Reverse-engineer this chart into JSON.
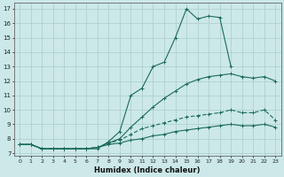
{
  "xlabel": "Humidex (Indice chaleur)",
  "bg_color": "#cce8e8",
  "grid_color": "#aacccc",
  "line_color": "#1a6b5a",
  "xlim": [
    -0.5,
    23.5
  ],
  "ylim": [
    6.8,
    17.4
  ],
  "yticks": [
    7,
    8,
    9,
    10,
    11,
    12,
    13,
    14,
    15,
    16,
    17
  ],
  "xticks": [
    0,
    1,
    2,
    3,
    4,
    5,
    6,
    7,
    8,
    9,
    10,
    11,
    12,
    13,
    14,
    15,
    16,
    17,
    18,
    19,
    20,
    21,
    22,
    23
  ],
  "line1_x": [
    0,
    1,
    2,
    3,
    4,
    5,
    6,
    7,
    8,
    9,
    10,
    11,
    12,
    13,
    14,
    15,
    16,
    17,
    18,
    19
  ],
  "line1_y": [
    7.6,
    7.6,
    7.3,
    7.3,
    7.3,
    7.3,
    7.3,
    7.3,
    7.8,
    8.5,
    11.0,
    11.5,
    13.0,
    13.3,
    15.0,
    17.0,
    16.3,
    16.5,
    16.4,
    13.0
  ],
  "line2_x": [
    0,
    1,
    2,
    3,
    4,
    5,
    6,
    7,
    8,
    9,
    10,
    11,
    12,
    13,
    14,
    15,
    16,
    17,
    18,
    19,
    20,
    21,
    22,
    23
  ],
  "line2_y": [
    7.6,
    7.6,
    7.3,
    7.3,
    7.3,
    7.3,
    7.3,
    7.4,
    7.7,
    8.0,
    8.8,
    9.5,
    10.2,
    10.8,
    11.3,
    11.8,
    12.1,
    12.3,
    12.4,
    12.5,
    12.3,
    12.2,
    12.3,
    12.0
  ],
  "line3_x": [
    0,
    1,
    2,
    3,
    4,
    5,
    6,
    7,
    8,
    9,
    10,
    11,
    12,
    13,
    14,
    15,
    16,
    17,
    18,
    19,
    20,
    21,
    22,
    23
  ],
  "line3_y": [
    7.6,
    7.6,
    7.3,
    7.3,
    7.3,
    7.3,
    7.3,
    7.4,
    7.7,
    7.9,
    8.3,
    8.7,
    8.9,
    9.1,
    9.3,
    9.5,
    9.6,
    9.7,
    9.8,
    10.0,
    9.8,
    9.8,
    10.0,
    9.3
  ],
  "line4_x": [
    0,
    1,
    2,
    3,
    4,
    5,
    6,
    7,
    8,
    9,
    10,
    11,
    12,
    13,
    14,
    15,
    16,
    17,
    18,
    19,
    20,
    21,
    22,
    23
  ],
  "line4_y": [
    7.6,
    7.6,
    7.3,
    7.3,
    7.3,
    7.3,
    7.3,
    7.4,
    7.6,
    7.7,
    7.9,
    8.0,
    8.2,
    8.3,
    8.5,
    8.6,
    8.7,
    8.8,
    8.9,
    9.0,
    8.9,
    8.9,
    9.0,
    8.8
  ]
}
